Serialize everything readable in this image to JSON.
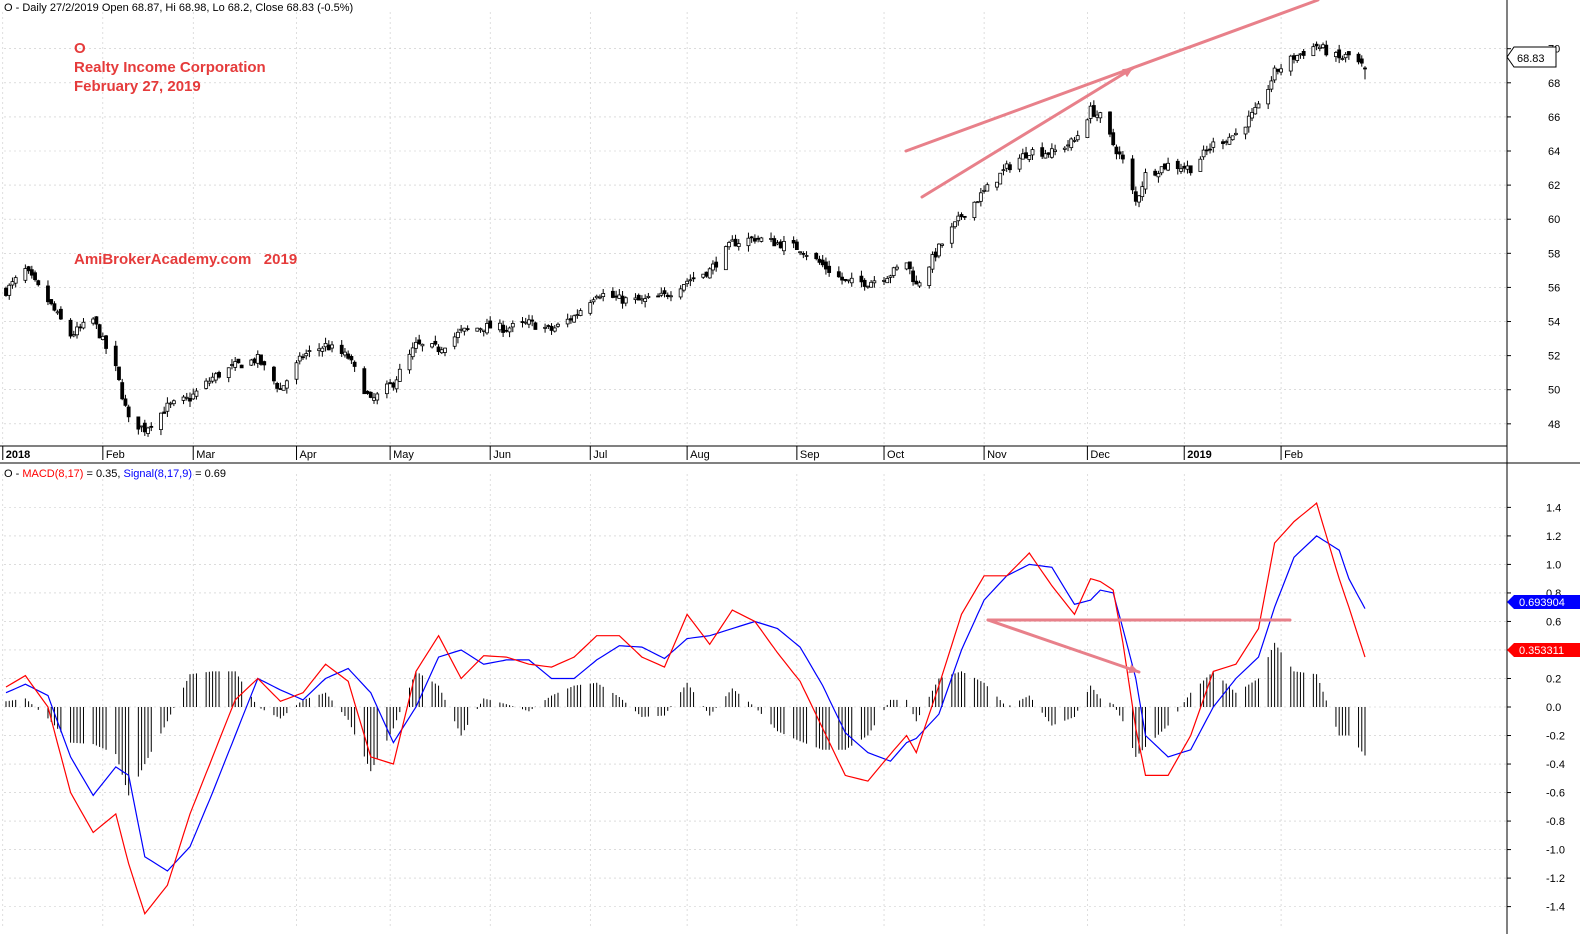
{
  "header": {
    "price_info": "O - Daily 27/2/2019 Open 68.87, Hi 68.98, Lo 68.2, Close 68.83 (-0.5%)",
    "macd_prefix": "O - ",
    "macd_label": "MACD(8,17)",
    "macd_value": " = 0.35, ",
    "signal_label": "Signal(8,17,9)",
    "signal_value": " = 0.69"
  },
  "annotations": {
    "ticker": "O",
    "company": "Realty Income Corporation",
    "date": "February 27, 2019",
    "watermark": "AmiBrokerAcademy.com   2019"
  },
  "value_tags": {
    "price": "68.83",
    "signal": "0.693904",
    "macd": "0.353311"
  },
  "colors": {
    "candle": "#000000",
    "macd": "#ff0000",
    "signal": "#0000ff",
    "histogram": "#000000",
    "annotation_text": "#e53b3b",
    "trend_arrows": "#e8808a",
    "grid": "#c8c8c8"
  },
  "chart_data": [
    {
      "type": "candlestick",
      "x_start": "2018-01-02",
      "x_end": "2019-02-27",
      "x_tick_labels": [
        "2018",
        "Feb",
        "Mar",
        "Apr",
        "May",
        "Jun",
        "Jul",
        "Aug",
        "Sep",
        "Oct",
        "Nov",
        "Dec",
        "2019",
        "Feb"
      ],
      "y_ticks": [
        48,
        50,
        52,
        54,
        56,
        58,
        60,
        62,
        64,
        66,
        68,
        70
      ],
      "ylim": [
        46.7,
        71.8
      ],
      "grid": true,
      "last": {
        "date": "2019-02-27",
        "open": 68.87,
        "high": 68.98,
        "low": 68.2,
        "close": 68.83
      },
      "price_path": [
        [
          "2018-01-02",
          55.8
        ],
        [
          "2018-01-08",
          57.0
        ],
        [
          "2018-01-15",
          55.2
        ],
        [
          "2018-01-22",
          53.2
        ],
        [
          "2018-01-29",
          54.1
        ],
        [
          "2018-02-05",
          51.2
        ],
        [
          "2018-02-09",
          48.2
        ],
        [
          "2018-02-14",
          47.7
        ],
        [
          "2018-02-21",
          49.0
        ],
        [
          "2018-02-28",
          49.5
        ],
        [
          "2018-03-07",
          50.7
        ],
        [
          "2018-03-14",
          51.4
        ],
        [
          "2018-03-21",
          51.8
        ],
        [
          "2018-03-28",
          50.0
        ],
        [
          "2018-04-04",
          52.0
        ],
        [
          "2018-04-11",
          52.6
        ],
        [
          "2018-04-18",
          51.9
        ],
        [
          "2018-04-25",
          49.3
        ],
        [
          "2018-05-02",
          50.4
        ],
        [
          "2018-05-09",
          52.6
        ],
        [
          "2018-05-16",
          52.4
        ],
        [
          "2018-05-23",
          53.4
        ],
        [
          "2018-05-30",
          53.7
        ],
        [
          "2018-06-06",
          53.6
        ],
        [
          "2018-06-13",
          53.9
        ],
        [
          "2018-06-20",
          53.5
        ],
        [
          "2018-06-27",
          54.3
        ],
        [
          "2018-07-04",
          55.7
        ],
        [
          "2018-07-11",
          55.3
        ],
        [
          "2018-07-18",
          55.2
        ],
        [
          "2018-07-25",
          55.5
        ],
        [
          "2018-08-01",
          56.4
        ],
        [
          "2018-08-08",
          57.0
        ],
        [
          "2018-08-15",
          58.6
        ],
        [
          "2018-08-22",
          58.9
        ],
        [
          "2018-08-29",
          58.6
        ],
        [
          "2018-09-05",
          58.3
        ],
        [
          "2018-09-12",
          57.3
        ],
        [
          "2018-09-19",
          56.3
        ],
        [
          "2018-09-26",
          56.3
        ],
        [
          "2018-10-03",
          56.8
        ],
        [
          "2018-10-08",
          57.5
        ],
        [
          "2018-10-11",
          56.1
        ],
        [
          "2018-10-18",
          58.3
        ],
        [
          "2018-10-25",
          60.2
        ],
        [
          "2018-11-01",
          61.6
        ],
        [
          "2018-11-08",
          63.0
        ],
        [
          "2018-11-15",
          64.0
        ],
        [
          "2018-11-22",
          63.9
        ],
        [
          "2018-11-29",
          64.6
        ],
        [
          "2018-12-04",
          66.4
        ],
        [
          "2018-12-07",
          66.0
        ],
        [
          "2018-12-11",
          64.4
        ],
        [
          "2018-12-14",
          63.4
        ],
        [
          "2018-12-18",
          61.0
        ],
        [
          "2018-12-21",
          62.6
        ],
        [
          "2018-12-28",
          63.2
        ],
        [
          "2019-01-04",
          63.0
        ],
        [
          "2019-01-11",
          64.4
        ],
        [
          "2019-01-18",
          65.0
        ],
        [
          "2019-01-25",
          66.5
        ],
        [
          "2019-01-30",
          68.6
        ],
        [
          "2019-02-05",
          69.5
        ],
        [
          "2019-02-12",
          70.2
        ],
        [
          "2019-02-19",
          69.4
        ],
        [
          "2019-02-22",
          69.6
        ],
        [
          "2019-02-27",
          68.83
        ]
      ]
    },
    {
      "type": "line",
      "title": "MACD(8,17)",
      "y_ticks": [
        -1.4,
        -1.2,
        -1.0,
        -0.8,
        -0.6,
        -0.4,
        -0.2,
        0.0,
        0.2,
        0.4,
        0.6,
        0.8,
        1.0,
        1.2,
        1.4
      ],
      "ylim": [
        -1.55,
        1.55
      ],
      "grid": true,
      "macd_last": 0.35,
      "signal_last": 0.69,
      "series": [
        {
          "name": "MACD(8,17)",
          "points": [
            [
              "2018-01-02",
              0.14
            ],
            [
              "2018-01-08",
              0.22
            ],
            [
              "2018-01-15",
              0.0
            ],
            [
              "2018-01-22",
              -0.6
            ],
            [
              "2018-01-29",
              -0.88
            ],
            [
              "2018-02-05",
              -0.75
            ],
            [
              "2018-02-09",
              -1.1
            ],
            [
              "2018-02-14",
              -1.45
            ],
            [
              "2018-02-21",
              -1.25
            ],
            [
              "2018-02-28",
              -0.75
            ],
            [
              "2018-03-07",
              -0.35
            ],
            [
              "2018-03-14",
              0.05
            ],
            [
              "2018-03-21",
              0.2
            ],
            [
              "2018-03-28",
              0.04
            ],
            [
              "2018-04-04",
              0.1
            ],
            [
              "2018-04-11",
              0.3
            ],
            [
              "2018-04-18",
              0.18
            ],
            [
              "2018-04-25",
              -0.35
            ],
            [
              "2018-05-02",
              -0.4
            ],
            [
              "2018-05-09",
              0.25
            ],
            [
              "2018-05-16",
              0.5
            ],
            [
              "2018-05-23",
              0.2
            ],
            [
              "2018-05-30",
              0.36
            ],
            [
              "2018-06-06",
              0.35
            ],
            [
              "2018-06-13",
              0.3
            ],
            [
              "2018-06-20",
              0.28
            ],
            [
              "2018-06-27",
              0.35
            ],
            [
              "2018-07-04",
              0.5
            ],
            [
              "2018-07-11",
              0.5
            ],
            [
              "2018-07-18",
              0.35
            ],
            [
              "2018-07-25",
              0.28
            ],
            [
              "2018-08-01",
              0.65
            ],
            [
              "2018-08-08",
              0.44
            ],
            [
              "2018-08-15",
              0.68
            ],
            [
              "2018-08-22",
              0.6
            ],
            [
              "2018-08-29",
              0.38
            ],
            [
              "2018-09-05",
              0.18
            ],
            [
              "2018-09-12",
              -0.15
            ],
            [
              "2018-09-19",
              -0.48
            ],
            [
              "2018-09-26",
              -0.52
            ],
            [
              "2018-10-03",
              -0.33
            ],
            [
              "2018-10-08",
              -0.2
            ],
            [
              "2018-10-11",
              -0.32
            ],
            [
              "2018-10-18",
              0.15
            ],
            [
              "2018-10-25",
              0.65
            ],
            [
              "2018-11-01",
              0.92
            ],
            [
              "2018-11-08",
              0.92
            ],
            [
              "2018-11-15",
              1.08
            ],
            [
              "2018-11-22",
              0.85
            ],
            [
              "2018-11-29",
              0.65
            ],
            [
              "2018-12-04",
              0.9
            ],
            [
              "2018-12-07",
              0.88
            ],
            [
              "2018-12-11",
              0.82
            ],
            [
              "2018-12-14",
              0.45
            ],
            [
              "2018-12-18",
              -0.15
            ],
            [
              "2018-12-21",
              -0.48
            ],
            [
              "2018-12-28",
              -0.48
            ],
            [
              "2019-01-04",
              -0.2
            ],
            [
              "2019-01-11",
              0.25
            ],
            [
              "2019-01-18",
              0.3
            ],
            [
              "2019-01-25",
              0.55
            ],
            [
              "2019-01-30",
              1.15
            ],
            [
              "2019-02-05",
              1.3
            ],
            [
              "2019-02-12",
              1.43
            ],
            [
              "2019-02-19",
              0.9
            ],
            [
              "2019-02-22",
              0.7
            ],
            [
              "2019-02-27",
              0.35
            ]
          ]
        },
        {
          "name": "Signal(8,17,9)",
          "points": [
            [
              "2018-01-02",
              0.1
            ],
            [
              "2018-01-08",
              0.16
            ],
            [
              "2018-01-15",
              0.08
            ],
            [
              "2018-01-22",
              -0.35
            ],
            [
              "2018-01-29",
              -0.62
            ],
            [
              "2018-02-05",
              -0.42
            ],
            [
              "2018-02-09",
              -0.48
            ],
            [
              "2018-02-14",
              -1.05
            ],
            [
              "2018-02-21",
              -1.15
            ],
            [
              "2018-02-28",
              -0.98
            ],
            [
              "2018-03-07",
              -0.6
            ],
            [
              "2018-03-14",
              -0.2
            ],
            [
              "2018-03-21",
              0.2
            ],
            [
              "2018-03-28",
              0.12
            ],
            [
              "2018-04-04",
              0.05
            ],
            [
              "2018-04-11",
              0.2
            ],
            [
              "2018-04-18",
              0.27
            ],
            [
              "2018-04-25",
              0.1
            ],
            [
              "2018-05-02",
              -0.25
            ],
            [
              "2018-05-09",
              0.0
            ],
            [
              "2018-05-16",
              0.35
            ],
            [
              "2018-05-23",
              0.4
            ],
            [
              "2018-05-30",
              0.3
            ],
            [
              "2018-06-06",
              0.33
            ],
            [
              "2018-06-13",
              0.33
            ],
            [
              "2018-06-20",
              0.2
            ],
            [
              "2018-06-27",
              0.2
            ],
            [
              "2018-07-04",
              0.33
            ],
            [
              "2018-07-11",
              0.43
            ],
            [
              "2018-07-18",
              0.42
            ],
            [
              "2018-07-25",
              0.34
            ],
            [
              "2018-08-01",
              0.48
            ],
            [
              "2018-08-08",
              0.5
            ],
            [
              "2018-08-15",
              0.55
            ],
            [
              "2018-08-22",
              0.6
            ],
            [
              "2018-08-29",
              0.55
            ],
            [
              "2018-09-05",
              0.42
            ],
            [
              "2018-09-12",
              0.15
            ],
            [
              "2018-09-19",
              -0.18
            ],
            [
              "2018-09-26",
              -0.32
            ],
            [
              "2018-10-03",
              -0.38
            ],
            [
              "2018-10-08",
              -0.25
            ],
            [
              "2018-10-11",
              -0.22
            ],
            [
              "2018-10-18",
              -0.05
            ],
            [
              "2018-10-25",
              0.4
            ],
            [
              "2018-11-01",
              0.75
            ],
            [
              "2018-11-08",
              0.92
            ],
            [
              "2018-11-15",
              1.0
            ],
            [
              "2018-11-22",
              0.98
            ],
            [
              "2018-11-29",
              0.72
            ],
            [
              "2018-12-04",
              0.75
            ],
            [
              "2018-12-07",
              0.82
            ],
            [
              "2018-12-11",
              0.8
            ],
            [
              "2018-12-14",
              0.55
            ],
            [
              "2018-12-18",
              0.2
            ],
            [
              "2018-12-21",
              -0.2
            ],
            [
              "2018-12-28",
              -0.35
            ],
            [
              "2019-01-04",
              -0.3
            ],
            [
              "2019-01-11",
              0.0
            ],
            [
              "2019-01-18",
              0.2
            ],
            [
              "2019-01-25",
              0.35
            ],
            [
              "2019-01-30",
              0.7
            ],
            [
              "2019-02-05",
              1.05
            ],
            [
              "2019-02-12",
              1.2
            ],
            [
              "2019-02-19",
              1.1
            ],
            [
              "2019-02-22",
              0.9
            ],
            [
              "2019-02-27",
              0.69
            ]
          ]
        }
      ]
    }
  ]
}
